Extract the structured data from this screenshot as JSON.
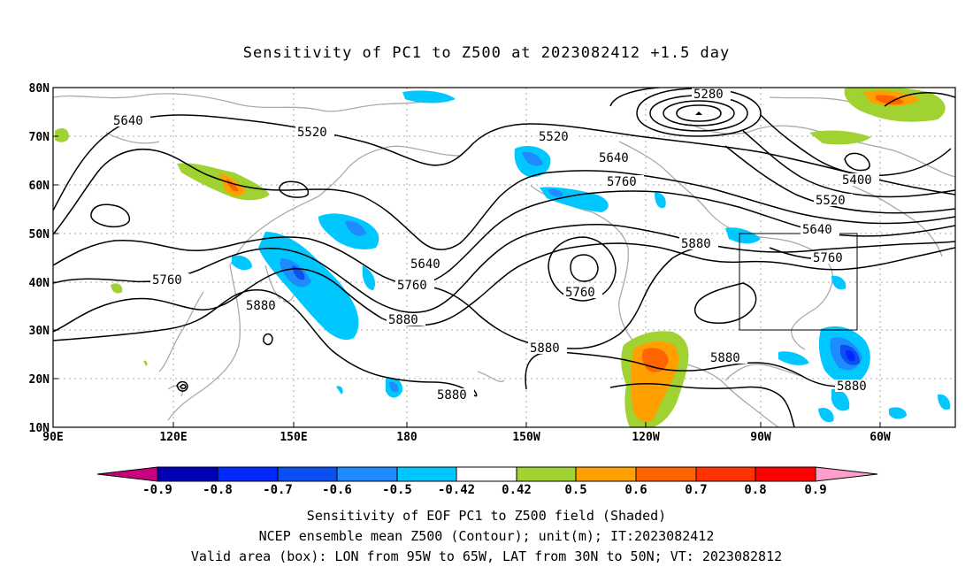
{
  "title": "Sensitivity of PC1 to Z500 at 2023082412 +1.5 day",
  "axes": {
    "lon_labels": [
      "90E",
      "120E",
      "150E",
      "180",
      "150W",
      "120W",
      "90W",
      "60W"
    ],
    "lat_labels": [
      "80N",
      "70N",
      "60N",
      "50N",
      "40N",
      "30N",
      "20N",
      "10N"
    ]
  },
  "contour_labels": [
    {
      "id": "5280",
      "text": "5280"
    },
    {
      "id": "5640a",
      "text": "5640"
    },
    {
      "id": "5520a",
      "text": "5520"
    },
    {
      "id": "5520b",
      "text": "5520"
    },
    {
      "id": "5640b",
      "text": "5640"
    },
    {
      "id": "5760a",
      "text": "5760"
    },
    {
      "id": "5400",
      "text": "5400"
    },
    {
      "id": "5520c",
      "text": "5520"
    },
    {
      "id": "5640c",
      "text": "5640"
    },
    {
      "id": "5880a",
      "text": "5880"
    },
    {
      "id": "5760b",
      "text": "5760"
    },
    {
      "id": "5640d",
      "text": "5640"
    },
    {
      "id": "5760c",
      "text": "5760"
    },
    {
      "id": "5760d",
      "text": "5760"
    },
    {
      "id": "5760e",
      "text": "5760"
    },
    {
      "id": "5880b",
      "text": "5880"
    },
    {
      "id": "5880c",
      "text": "5880"
    },
    {
      "id": "5880d",
      "text": "5880"
    },
    {
      "id": "5880e",
      "text": "5880"
    },
    {
      "id": "5880f",
      "text": "5880"
    },
    {
      "id": "5880g",
      "text": "5880"
    }
  ],
  "colorbar": {
    "labels": [
      "-0.9",
      "-0.8",
      "-0.7",
      "-0.6",
      "-0.5",
      "-0.42",
      "0.42",
      "0.5",
      "0.6",
      "0.7",
      "0.8",
      "0.9"
    ],
    "colors": [
      "#c8007d",
      "#0000b4",
      "#0028ff",
      "#0a50f0",
      "#1e8cff",
      "#00c8ff",
      "#ffffff",
      "#a0d232",
      "#ffa000",
      "#ff6400",
      "#ff3200",
      "#ff0000",
      "#ff9ec8"
    ]
  },
  "captions": {
    "line1": "Sensitivity of EOF PC1 to Z500 field (Shaded)",
    "line2": "NCEP ensemble mean Z500 (Contour); unit(m); IT:2023082412",
    "line3": "Valid area (box): LON from 95W to 65W, LAT from 30N to 50N; VT: 2023082812"
  },
  "valid_box": {
    "lon_min": -95,
    "lon_max": -65,
    "lat_min": 30,
    "lat_max": 50
  }
}
